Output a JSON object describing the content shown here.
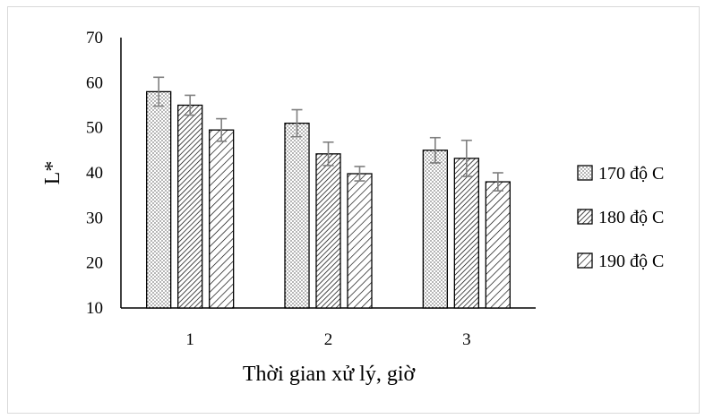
{
  "chart_data": {
    "type": "bar",
    "xlabel": "Thời gian xử lý, giờ",
    "ylabel": "L*",
    "ylim": [
      10,
      70
    ],
    "yticks": [
      10,
      20,
      30,
      40,
      50,
      60,
      70
    ],
    "categories": [
      "1",
      "2",
      "3"
    ],
    "series": [
      {
        "name": "170 độ C",
        "pattern": "dots",
        "values": [
          58,
          51,
          45
        ],
        "errors": [
          3.2,
          3,
          2.8
        ]
      },
      {
        "name": "180 độ C",
        "pattern": "diag-dense",
        "values": [
          55,
          44.2,
          43.2
        ],
        "errors": [
          2.2,
          2.6,
          4
        ]
      },
      {
        "name": "190 độ C",
        "pattern": "diag-sparse",
        "values": [
          49.5,
          39.8,
          38
        ],
        "errors": [
          2.5,
          1.6,
          2
        ]
      }
    ],
    "legend_position": "right",
    "grid": false,
    "colors": {
      "bar_stroke": "#000000",
      "pattern": "#000000",
      "error_bar": "#7f7f7f"
    }
  }
}
